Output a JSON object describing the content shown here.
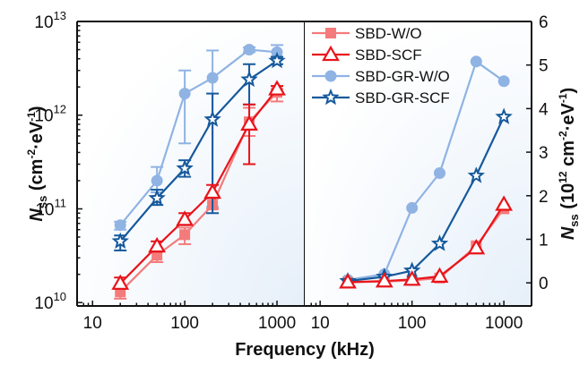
{
  "chart_data": [
    {
      "panel": "left",
      "type": "line",
      "xscale": "log",
      "yscale": "log",
      "xlabel": "Frequency (kHz)",
      "ylabel": {
        "main": "N",
        "sub": "ss",
        "unit_pre": " (cm",
        "sup1": "-2",
        "mid": "·eV",
        "sup2": "-1",
        "unit_post": ")"
      },
      "xlim": [
        6.8,
        2000
      ],
      "ylim": [
        9200000000.0,
        10000000000000.0
      ],
      "xticks": [
        {
          "v": 10,
          "label": "10"
        },
        {
          "v": 100,
          "label": "100"
        },
        {
          "v": 1000,
          "label": "1000"
        }
      ],
      "yticks": [
        {
          "v": 10000000000.0,
          "base": "10",
          "exp": "10"
        },
        {
          "v": 100000000000.0,
          "base": "10",
          "exp": "11"
        },
        {
          "v": 1000000000000.0,
          "base": "10",
          "exp": "12"
        },
        {
          "v": 10000000000000.0,
          "base": "10",
          "exp": "13"
        }
      ],
      "x": [
        20,
        50,
        100,
        200,
        500,
        1000
      ],
      "series": [
        {
          "name": "SBD-W/O",
          "values": [
            13000000000.0,
            32000000000.0,
            53000000000.0,
            110000000000.0,
            850000000000.0,
            1750000000000.0
          ],
          "err_low": [
            11000000000.0,
            27000000000.0,
            42000000000.0,
            100000000000.0,
            600000000000.0,
            1400000000000.0
          ],
          "err_high": [
            15000000000.0,
            37000000000.0,
            63000000000.0,
            130000000000.0,
            1200000000000.0,
            1900000000000.0
          ]
        },
        {
          "name": "SBD-SCF",
          "values": [
            16000000000.0,
            40000000000.0,
            77000000000.0,
            150000000000.0,
            800000000000.0,
            1900000000000.0
          ],
          "err_low": [
            14000000000.0,
            35000000000.0,
            67000000000.0,
            130000000000.0,
            300000000000.0,
            1700000000000.0
          ],
          "err_high": [
            18500000000.0,
            45000000000.0,
            90000000000.0,
            180000000000.0,
            1300000000000.0,
            2050000000000.0
          ]
        },
        {
          "name": "SBD-GR-W/O",
          "values": [
            67000000000.0,
            200000000000.0,
            1700000000000.0,
            2500000000000.0,
            5000000000000.0,
            4700000000000.0
          ],
          "err_low": [
            60000000000.0,
            150000000000.0,
            500000000000.0,
            105000000000.0,
            4700000000000.0,
            4000000000000.0
          ],
          "err_high": [
            73000000000.0,
            280000000000.0,
            3000000000000.0,
            4900000000000.0,
            5300000000000.0,
            5600000000000.0
          ]
        },
        {
          "name": "SBD-GR-SCF",
          "values": [
            45000000000.0,
            130000000000.0,
            270000000000.0,
            900000000000.0,
            2400000000000.0,
            3800000000000.0
          ],
          "err_low": [
            36000000000.0,
            110000000000.0,
            220000000000.0,
            90000000000.0,
            1300000000000.0,
            3500000000000.0
          ],
          "err_high": [
            52000000000.0,
            160000000000.0,
            330000000000.0,
            1700000000000.0,
            3500000000000.0,
            4200000000000.0
          ]
        }
      ]
    },
    {
      "panel": "right",
      "type": "line",
      "xscale": "log",
      "yscale": "linear",
      "xlabel": "Frequency (kHz)",
      "ylabel": {
        "main": "N",
        "sub": "ss",
        "unit_pre": " (10",
        "sup0": "12",
        "unit_mid": " cm",
        "sup1": "-2",
        "mid": "·eV",
        "sup2": "-1",
        "unit_post": ")"
      },
      "xlim": [
        6.8,
        2000
      ],
      "ylim": [
        -0.53,
        6
      ],
      "xticks": [
        {
          "v": 10,
          "label": "10"
        },
        {
          "v": 100,
          "label": "100"
        },
        {
          "v": 1000,
          "label": "1000"
        }
      ],
      "yticks": [
        0,
        1,
        2,
        3,
        4,
        5,
        6
      ],
      "x": [
        20,
        50,
        100,
        200,
        500,
        1000
      ],
      "series": [
        {
          "name": "SBD-W/O",
          "values": [
            0.013,
            0.03,
            0.055,
            0.11,
            0.85,
            1.7
          ]
        },
        {
          "name": "SBD-SCF",
          "values": [
            0.016,
            0.04,
            0.08,
            0.15,
            0.8,
            1.8
          ]
        },
        {
          "name": "SBD-GR-W/O",
          "values": [
            0.07,
            0.2,
            1.72,
            2.52,
            5.08,
            4.63
          ]
        },
        {
          "name": "SBD-GR-SCF",
          "values": [
            0.04,
            0.14,
            0.28,
            0.9,
            2.46,
            3.81
          ]
        }
      ]
    }
  ],
  "legend": {
    "placement": "top-left of right panel",
    "entries": [
      {
        "name": "SBD-W/O",
        "marker": "square",
        "color": "#f47b7b"
      },
      {
        "name": "SBD-SCF",
        "marker": "triangle-open",
        "color": "#e8141b"
      },
      {
        "name": "SBD-GR-W/O",
        "marker": "circle",
        "color": "#8fb3e3"
      },
      {
        "name": "SBD-GR-SCF",
        "marker": "star-open",
        "color": "#16599c"
      }
    ]
  },
  "colors": {
    "SBD-W/O": "#f47b7b",
    "SBD-SCF": "#e8141b",
    "SBD-GR-W/O": "#8fb3e3",
    "SBD-GR-SCF": "#16599c",
    "axis": "#111111",
    "gradient_light": "#eef4fb"
  }
}
